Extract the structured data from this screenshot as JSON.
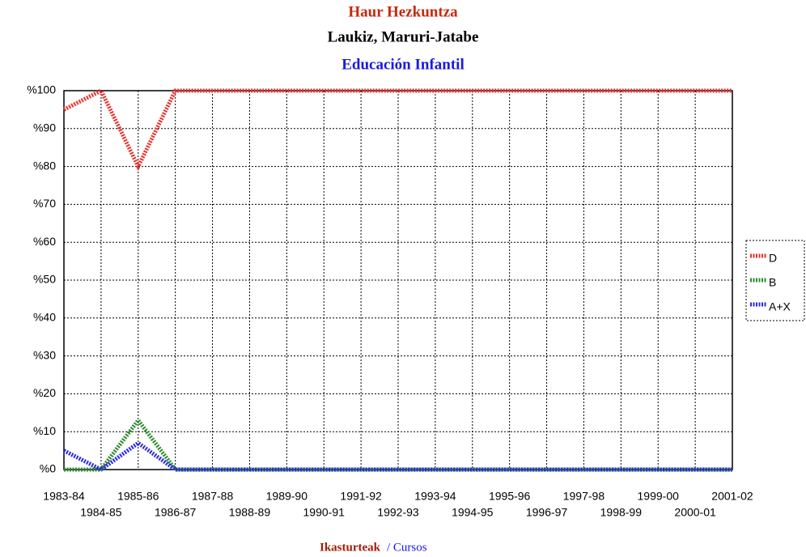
{
  "chart_data": {
    "type": "line",
    "title": "Haur Hezkuntza",
    "subtitle": "Laukiz, Maruri-Jatabe",
    "subtitle2": "Educación Infantil",
    "x_label": "Ikasturteak",
    "x_label2": "/ Cursos",
    "categories": [
      "1983-84",
      "1984-85",
      "1985-86",
      "1986-87",
      "1987-88",
      "1988-89",
      "1989-90",
      "1990-91",
      "1991-92",
      "1992-93",
      "1993-94",
      "1994-95",
      "1995-96",
      "1996-97",
      "1997-98",
      "1998-99",
      "1999-00",
      "2000-01",
      "2001-02"
    ],
    "series": [
      {
        "name": "D",
        "color": "#e8322d",
        "values": [
          95,
          100,
          80,
          100,
          100,
          100,
          100,
          100,
          100,
          100,
          100,
          100,
          100,
          100,
          100,
          100,
          100,
          100,
          100
        ]
      },
      {
        "name": "B",
        "color": "#2e8b2e",
        "values": [
          0,
          0,
          13,
          0,
          0,
          0,
          0,
          0,
          0,
          0,
          0,
          0,
          0,
          0,
          0,
          0,
          0,
          0,
          0
        ]
      },
      {
        "name": "A+X",
        "color": "#2a2ae0",
        "values": [
          5,
          0,
          7,
          0,
          0,
          0,
          0,
          0,
          0,
          0,
          0,
          0,
          0,
          0,
          0,
          0,
          0,
          0,
          0
        ]
      }
    ],
    "ylim": [
      0,
      100
    ],
    "yticks": [
      {
        "value": 0,
        "label": "%0"
      },
      {
        "value": 10,
        "label": "%10"
      },
      {
        "value": 20,
        "label": "%20"
      },
      {
        "value": 30,
        "label": "%30"
      },
      {
        "value": 40,
        "label": "%40"
      },
      {
        "value": 50,
        "label": "%50"
      },
      {
        "value": 60,
        "label": "%60"
      },
      {
        "value": 70,
        "label": "%70"
      },
      {
        "value": 80,
        "label": "%80"
      },
      {
        "value": 90,
        "label": "%90"
      },
      {
        "value": 100,
        "label": "%100"
      }
    ],
    "grid": true,
    "legend": "right"
  }
}
